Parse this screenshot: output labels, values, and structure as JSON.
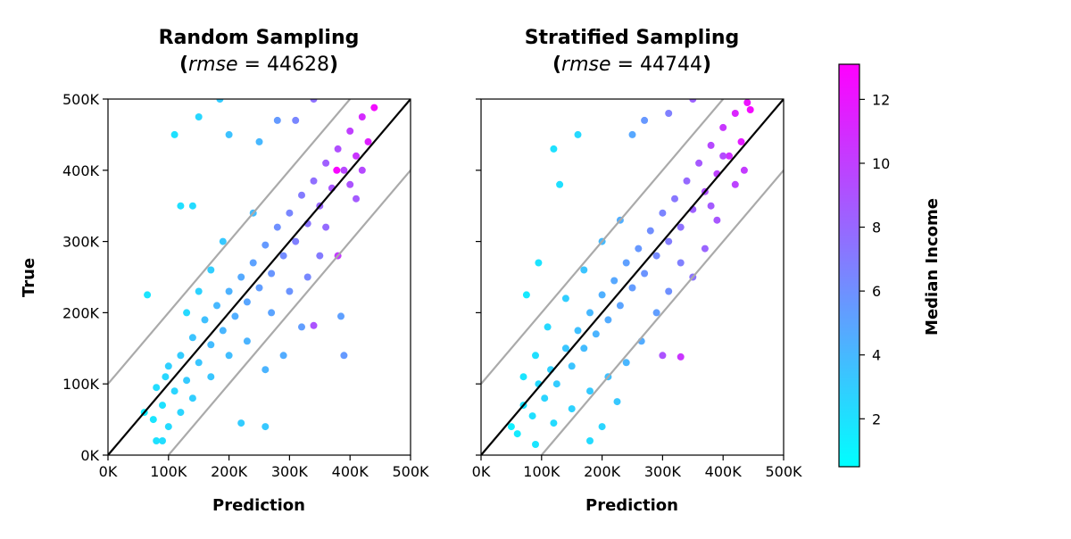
{
  "chart_data": [
    {
      "type": "scatter",
      "title_line1": "Random Sampling",
      "title_line2_label": "rmse",
      "title_line2_value": "44628",
      "xlabel": "Prediction",
      "ylabel": "True",
      "xlim": [
        0,
        500000
      ],
      "ylim": [
        0,
        500000
      ],
      "xticks": [
        "0K",
        "100K",
        "200K",
        "300K",
        "400K",
        "500K"
      ],
      "yticks": [
        "0K",
        "100K",
        "200K",
        "300K",
        "400K",
        "500K"
      ],
      "reference_lines": [
        {
          "name": "identity",
          "offset": 0,
          "color": "#000000"
        },
        {
          "name": "upper-band",
          "offset": 100000,
          "color": "#aaaaaa"
        },
        {
          "name": "lower-band",
          "offset": -100000,
          "color": "#aaaaaa"
        }
      ],
      "series": [
        {
          "color_by": "Median Income",
          "points": [
            {
              "x": 60000,
              "y": 60000,
              "c": 1.5
            },
            {
              "x": 75000,
              "y": 50000,
              "c": 1.8
            },
            {
              "x": 80000,
              "y": 95000,
              "c": 2.2
            },
            {
              "x": 90000,
              "y": 70000,
              "c": 2.0
            },
            {
              "x": 95000,
              "y": 110000,
              "c": 2.5
            },
            {
              "x": 100000,
              "y": 125000,
              "c": 2.8
            },
            {
              "x": 110000,
              "y": 90000,
              "c": 2.6
            },
            {
              "x": 120000,
              "y": 140000,
              "c": 3.0
            },
            {
              "x": 130000,
              "y": 105000,
              "c": 3.1
            },
            {
              "x": 140000,
              "y": 165000,
              "c": 3.4
            },
            {
              "x": 150000,
              "y": 130000,
              "c": 3.3
            },
            {
              "x": 160000,
              "y": 190000,
              "c": 3.6
            },
            {
              "x": 170000,
              "y": 155000,
              "c": 3.8
            },
            {
              "x": 180000,
              "y": 210000,
              "c": 4.0
            },
            {
              "x": 190000,
              "y": 175000,
              "c": 4.1
            },
            {
              "x": 200000,
              "y": 230000,
              "c": 4.3
            },
            {
              "x": 210000,
              "y": 195000,
              "c": 4.5
            },
            {
              "x": 220000,
              "y": 250000,
              "c": 4.7
            },
            {
              "x": 230000,
              "y": 215000,
              "c": 4.9
            },
            {
              "x": 240000,
              "y": 270000,
              "c": 5.1
            },
            {
              "x": 250000,
              "y": 235000,
              "c": 5.3
            },
            {
              "x": 260000,
              "y": 295000,
              "c": 5.5
            },
            {
              "x": 270000,
              "y": 255000,
              "c": 5.7
            },
            {
              "x": 280000,
              "y": 320000,
              "c": 6.0
            },
            {
              "x": 290000,
              "y": 280000,
              "c": 6.2
            },
            {
              "x": 300000,
              "y": 340000,
              "c": 6.5
            },
            {
              "x": 310000,
              "y": 300000,
              "c": 6.8
            },
            {
              "x": 320000,
              "y": 365000,
              "c": 7.0
            },
            {
              "x": 330000,
              "y": 325000,
              "c": 7.3
            },
            {
              "x": 340000,
              "y": 385000,
              "c": 7.6
            },
            {
              "x": 350000,
              "y": 350000,
              "c": 8.0
            },
            {
              "x": 360000,
              "y": 410000,
              "c": 8.4
            },
            {
              "x": 370000,
              "y": 375000,
              "c": 8.8
            },
            {
              "x": 380000,
              "y": 430000,
              "c": 9.2
            },
            {
              "x": 390000,
              "y": 400000,
              "c": 9.6
            },
            {
              "x": 400000,
              "y": 455000,
              "c": 10.0
            },
            {
              "x": 410000,
              "y": 420000,
              "c": 10.5
            },
            {
              "x": 420000,
              "y": 475000,
              "c": 11.0
            },
            {
              "x": 430000,
              "y": 440000,
              "c": 11.5
            },
            {
              "x": 440000,
              "y": 488000,
              "c": 12.5
            },
            {
              "x": 378000,
              "y": 400000,
              "c": 12.8
            },
            {
              "x": 380000,
              "y": 280000,
              "c": 10.2
            },
            {
              "x": 340000,
              "y": 182000,
              "c": 9.0
            },
            {
              "x": 390000,
              "y": 140000,
              "c": 5.5
            },
            {
              "x": 385000,
              "y": 195000,
              "c": 5.2
            },
            {
              "x": 260000,
              "y": 40000,
              "c": 3.2
            },
            {
              "x": 220000,
              "y": 45000,
              "c": 3.0
            },
            {
              "x": 150000,
              "y": 475000,
              "c": 2.5
            },
            {
              "x": 110000,
              "y": 450000,
              "c": 2.0
            },
            {
              "x": 185000,
              "y": 500000,
              "c": 3.0
            },
            {
              "x": 140000,
              "y": 350000,
              "c": 2.3
            },
            {
              "x": 120000,
              "y": 350000,
              "c": 2.1
            },
            {
              "x": 65000,
              "y": 225000,
              "c": 1.8
            },
            {
              "x": 90000,
              "y": 20000,
              "c": 2.2
            },
            {
              "x": 80000,
              "y": 20000,
              "c": 2.0
            },
            {
              "x": 200000,
              "y": 450000,
              "c": 3.5
            },
            {
              "x": 250000,
              "y": 440000,
              "c": 4.0
            },
            {
              "x": 280000,
              "y": 470000,
              "c": 5.5
            },
            {
              "x": 310000,
              "y": 470000,
              "c": 6.5
            },
            {
              "x": 340000,
              "y": 500000,
              "c": 7.5
            },
            {
              "x": 260000,
              "y": 120000,
              "c": 4.2
            },
            {
              "x": 290000,
              "y": 140000,
              "c": 4.6
            },
            {
              "x": 320000,
              "y": 180000,
              "c": 5.3
            },
            {
              "x": 240000,
              "y": 340000,
              "c": 3.8
            },
            {
              "x": 190000,
              "y": 300000,
              "c": 3.2
            },
            {
              "x": 170000,
              "y": 260000,
              "c": 2.9
            },
            {
              "x": 130000,
              "y": 200000,
              "c": 2.4
            },
            {
              "x": 150000,
              "y": 230000,
              "c": 2.7
            },
            {
              "x": 300000,
              "y": 230000,
              "c": 5.8
            },
            {
              "x": 350000,
              "y": 280000,
              "c": 7.0
            },
            {
              "x": 360000,
              "y": 320000,
              "c": 7.8
            },
            {
              "x": 400000,
              "y": 380000,
              "c": 9.0
            },
            {
              "x": 420000,
              "y": 400000,
              "c": 9.5
            },
            {
              "x": 410000,
              "y": 360000,
              "c": 8.6
            },
            {
              "x": 330000,
              "y": 250000,
              "c": 6.4
            },
            {
              "x": 270000,
              "y": 200000,
              "c": 5.0
            },
            {
              "x": 230000,
              "y": 160000,
              "c": 4.2
            },
            {
              "x": 200000,
              "y": 140000,
              "c": 3.7
            },
            {
              "x": 170000,
              "y": 110000,
              "c": 3.3
            },
            {
              "x": 140000,
              "y": 80000,
              "c": 2.9
            },
            {
              "x": 120000,
              "y": 60000,
              "c": 2.6
            },
            {
              "x": 100000,
              "y": 40000,
              "c": 2.3
            }
          ]
        }
      ]
    },
    {
      "type": "scatter",
      "title_line1": "Stratified Sampling",
      "title_line2_label": "rmse",
      "title_line2_value": "44744",
      "xlabel": "Prediction",
      "ylabel": "",
      "xlim": [
        0,
        500000
      ],
      "ylim": [
        0,
        500000
      ],
      "xticks": [
        "0K",
        "100K",
        "200K",
        "300K",
        "400K",
        "500K"
      ],
      "yticks": [
        "",
        "",
        "",
        "",
        "",
        ""
      ],
      "reference_lines": [
        {
          "name": "identity",
          "offset": 0,
          "color": "#000000"
        },
        {
          "name": "upper-band",
          "offset": 100000,
          "color": "#aaaaaa"
        },
        {
          "name": "lower-band",
          "offset": -100000,
          "color": "#aaaaaa"
        }
      ],
      "series": [
        {
          "color_by": "Median Income",
          "points": [
            {
              "x": 50000,
              "y": 40000,
              "c": 1.3
            },
            {
              "x": 60000,
              "y": 30000,
              "c": 1.5
            },
            {
              "x": 70000,
              "y": 70000,
              "c": 1.9
            },
            {
              "x": 85000,
              "y": 55000,
              "c": 2.1
            },
            {
              "x": 95000,
              "y": 100000,
              "c": 2.4
            },
            {
              "x": 105000,
              "y": 80000,
              "c": 2.6
            },
            {
              "x": 115000,
              "y": 120000,
              "c": 2.8
            },
            {
              "x": 125000,
              "y": 100000,
              "c": 3.0
            },
            {
              "x": 140000,
              "y": 150000,
              "c": 3.3
            },
            {
              "x": 150000,
              "y": 125000,
              "c": 3.4
            },
            {
              "x": 160000,
              "y": 175000,
              "c": 3.6
            },
            {
              "x": 170000,
              "y": 150000,
              "c": 3.8
            },
            {
              "x": 180000,
              "y": 200000,
              "c": 4.0
            },
            {
              "x": 190000,
              "y": 170000,
              "c": 4.2
            },
            {
              "x": 200000,
              "y": 225000,
              "c": 4.4
            },
            {
              "x": 210000,
              "y": 190000,
              "c": 4.6
            },
            {
              "x": 220000,
              "y": 245000,
              "c": 4.8
            },
            {
              "x": 230000,
              "y": 210000,
              "c": 5.0
            },
            {
              "x": 240000,
              "y": 270000,
              "c": 5.2
            },
            {
              "x": 250000,
              "y": 235000,
              "c": 5.4
            },
            {
              "x": 260000,
              "y": 290000,
              "c": 5.6
            },
            {
              "x": 270000,
              "y": 255000,
              "c": 5.8
            },
            {
              "x": 280000,
              "y": 315000,
              "c": 6.1
            },
            {
              "x": 290000,
              "y": 280000,
              "c": 6.3
            },
            {
              "x": 300000,
              "y": 340000,
              "c": 6.6
            },
            {
              "x": 310000,
              "y": 300000,
              "c": 6.9
            },
            {
              "x": 320000,
              "y": 360000,
              "c": 7.2
            },
            {
              "x": 330000,
              "y": 320000,
              "c": 7.5
            },
            {
              "x": 340000,
              "y": 385000,
              "c": 7.9
            },
            {
              "x": 350000,
              "y": 345000,
              "c": 8.3
            },
            {
              "x": 360000,
              "y": 410000,
              "c": 8.7
            },
            {
              "x": 370000,
              "y": 370000,
              "c": 9.1
            },
            {
              "x": 380000,
              "y": 435000,
              "c": 9.5
            },
            {
              "x": 390000,
              "y": 395000,
              "c": 9.9
            },
            {
              "x": 400000,
              "y": 460000,
              "c": 10.4
            },
            {
              "x": 410000,
              "y": 420000,
              "c": 10.8
            },
            {
              "x": 420000,
              "y": 480000,
              "c": 11.3
            },
            {
              "x": 430000,
              "y": 440000,
              "c": 11.7
            },
            {
              "x": 440000,
              "y": 495000,
              "c": 12.2
            },
            {
              "x": 445000,
              "y": 485000,
              "c": 12.6
            },
            {
              "x": 330000,
              "y": 138000,
              "c": 10.5
            },
            {
              "x": 300000,
              "y": 140000,
              "c": 9.0
            },
            {
              "x": 225000,
              "y": 75000,
              "c": 3.2
            },
            {
              "x": 200000,
              "y": 40000,
              "c": 2.6
            },
            {
              "x": 180000,
              "y": 20000,
              "c": 2.3
            },
            {
              "x": 90000,
              "y": 15000,
              "c": 1.8
            },
            {
              "x": 160000,
              "y": 450000,
              "c": 2.4
            },
            {
              "x": 120000,
              "y": 430000,
              "c": 2.0
            },
            {
              "x": 130000,
              "y": 380000,
              "c": 2.1
            },
            {
              "x": 75000,
              "y": 225000,
              "c": 1.6
            },
            {
              "x": 95000,
              "y": 270000,
              "c": 1.9
            },
            {
              "x": 250000,
              "y": 450000,
              "c": 4.8
            },
            {
              "x": 270000,
              "y": 470000,
              "c": 5.6
            },
            {
              "x": 310000,
              "y": 480000,
              "c": 6.8
            },
            {
              "x": 350000,
              "y": 500000,
              "c": 8.2
            },
            {
              "x": 265000,
              "y": 160000,
              "c": 4.6
            },
            {
              "x": 290000,
              "y": 200000,
              "c": 5.3
            },
            {
              "x": 350000,
              "y": 250000,
              "c": 7.4
            },
            {
              "x": 370000,
              "y": 290000,
              "c": 8.1
            },
            {
              "x": 390000,
              "y": 330000,
              "c": 8.8
            },
            {
              "x": 420000,
              "y": 380000,
              "c": 9.8
            },
            {
              "x": 435000,
              "y": 400000,
              "c": 10.2
            },
            {
              "x": 230000,
              "y": 330000,
              "c": 4.5
            },
            {
              "x": 200000,
              "y": 300000,
              "c": 3.9
            },
            {
              "x": 170000,
              "y": 260000,
              "c": 3.4
            },
            {
              "x": 140000,
              "y": 220000,
              "c": 2.9
            },
            {
              "x": 110000,
              "y": 180000,
              "c": 2.4
            },
            {
              "x": 90000,
              "y": 140000,
              "c": 2.1
            },
            {
              "x": 70000,
              "y": 110000,
              "c": 1.8
            },
            {
              "x": 240000,
              "y": 130000,
              "c": 4.1
            },
            {
              "x": 210000,
              "y": 110000,
              "c": 3.6
            },
            {
              "x": 180000,
              "y": 90000,
              "c": 3.1
            },
            {
              "x": 150000,
              "y": 65000,
              "c": 2.7
            },
            {
              "x": 120000,
              "y": 45000,
              "c": 2.3
            },
            {
              "x": 310000,
              "y": 230000,
              "c": 6.0
            },
            {
              "x": 330000,
              "y": 270000,
              "c": 6.8
            },
            {
              "x": 380000,
              "y": 350000,
              "c": 8.6
            },
            {
              "x": 400000,
              "y": 420000,
              "c": 9.4
            }
          ]
        }
      ]
    }
  ],
  "colorbar": {
    "label": "Median Income",
    "min": 0.5,
    "max": 13.1,
    "ticks": [
      2,
      4,
      6,
      8,
      10,
      12
    ],
    "tick_labels": [
      "2",
      "4",
      "6",
      "8",
      "10",
      "12"
    ],
    "colors": [
      "#00ffff",
      "#ff00ff"
    ]
  }
}
